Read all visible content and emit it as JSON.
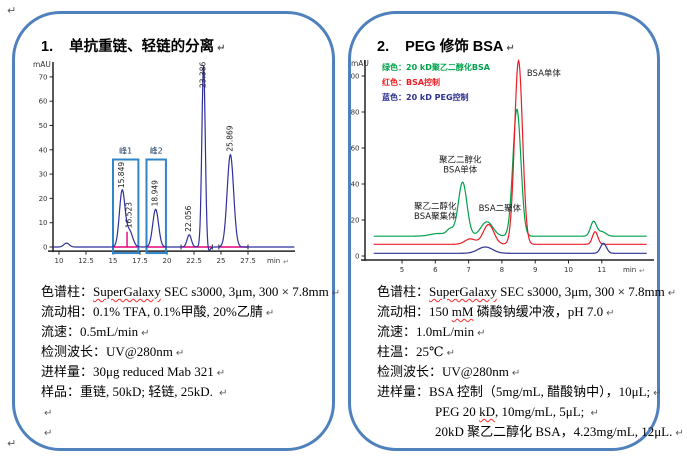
{
  "page": {
    "background": "#ffffff",
    "panel_border_color": "#4f81bd"
  },
  "paragraph_mark": "↵",
  "panels": [
    {
      "number": "1.",
      "title": "单抗重链、轻链的分离",
      "specs": [
        {
          "label": "色谱柱：",
          "segments": [
            {
              "text": "SuperGalaxy",
              "wavy": true
            },
            {
              "text": " SEC s3000, 3μm, 300 × 7.8mm"
            }
          ]
        },
        {
          "label": "流动相：",
          "segments": [
            {
              "text": "0.1% TFA, 0.1%甲酸, 20%乙腈"
            }
          ]
        },
        {
          "label": "流速：",
          "segments": [
            {
              "text": "0.5mL/min"
            }
          ]
        },
        {
          "label": "检测波长：",
          "segments": [
            {
              "text": "UV@280nm"
            }
          ]
        },
        {
          "label": "进样量：",
          "segments": [
            {
              "text": "30μg reduced Mab 321"
            }
          ]
        },
        {
          "label": "样品：",
          "segments": [
            {
              "text": "重链, 50kD; 轻链, 25kD. "
            }
          ]
        },
        {
          "label": "",
          "segments": []
        },
        {
          "label": "",
          "segments": []
        }
      ]
    },
    {
      "number": "2.",
      "title": "PEG 修饰 BSA",
      "specs": [
        {
          "label": "色谱柱：",
          "segments": [
            {
              "text": "SuperGalaxy",
              "wavy": true
            },
            {
              "text": " SEC s3000, 3μm, 300 × 7.8mm"
            }
          ]
        },
        {
          "label": "流动相：",
          "segments": [
            {
              "text": "150 "
            },
            {
              "text": "mM",
              "wavy": true
            },
            {
              "text": " 磷酸钠缓冲液，pH 7.0"
            }
          ]
        },
        {
          "label": "流速：",
          "segments": [
            {
              "text": "1.0mL/min"
            }
          ]
        },
        {
          "label": "柱温：",
          "segments": [
            {
              "text": "25℃"
            }
          ]
        },
        {
          "label": "检测波长：",
          "segments": [
            {
              "text": "UV@280nm"
            }
          ]
        },
        {
          "label": "进样量：",
          "segments": [
            {
              "text": "BSA 控制（5mg/mL, 醋酸钠中），10μL;"
            }
          ]
        },
        {
          "label": "",
          "indent": true,
          "segments": [
            {
              "text": "PEG 20 "
            },
            {
              "text": "kD",
              "wavy": true
            },
            {
              "text": ", 10mg/mL, 5μL; "
            }
          ]
        },
        {
          "label": "",
          "indent": true,
          "segments": [
            {
              "text": "20kD 聚乙二醇化 BSA，4.23mg/mL, 12μL."
            }
          ]
        }
      ]
    }
  ],
  "chart_data": [
    {
      "type": "line",
      "title": "单抗重链、轻链的分离 SEC chromatogram",
      "xlabel": "min",
      "ylabel": "mAU",
      "xlim": [
        9.5,
        31.8
      ],
      "ylim": [
        -4,
        77
      ],
      "xticks": [
        10,
        12.5,
        15,
        17.5,
        20,
        22.5,
        25,
        27.5
      ],
      "yticks": [
        0,
        10,
        20,
        30,
        40,
        50,
        60,
        70
      ],
      "grid": false,
      "series": [
        {
          "name": "UV 280nm trace",
          "color": "#2f2f9d",
          "baseline": 0,
          "peaks": [
            {
              "rt": 10.7,
              "height": 1.6,
              "sigma": 0.25
            },
            {
              "rt": 15.849,
              "height": 23,
              "sigma": 0.26,
              "label": "15.849"
            },
            {
              "rt": 16.523,
              "height": 6.5,
              "sigma": 0.3,
              "label": "16.523"
            },
            {
              "rt": 18.949,
              "height": 15.5,
              "sigma": 0.27,
              "label": "18.949"
            },
            {
              "rt": 22.056,
              "height": 5,
              "sigma": 0.2,
              "label": "22.056"
            },
            {
              "rt": 23.386,
              "height": 75,
              "sigma": 0.16,
              "label": "23.386"
            },
            {
              "rt": 23.78,
              "height": -2.2,
              "sigma": 0.18
            },
            {
              "rt": 25.869,
              "height": 38,
              "sigma": 0.3,
              "label": "25.869"
            }
          ]
        }
      ],
      "integration_color": "#e5007d",
      "integration_segments": [
        [
          15.0,
          17.35
        ],
        [
          18.1,
          19.9
        ],
        [
          21.3,
          24.2
        ],
        [
          24.8,
          27.5
        ]
      ],
      "drop_line": {
        "x": 16.3,
        "to": 6.3
      },
      "region_box_color": "#2e86c8",
      "region_label_color": "#17375e",
      "region_boxes": [
        {
          "label": "峰1",
          "x1": 15.0,
          "x2": 17.35,
          "y1": -2.5,
          "y2": 36
        },
        {
          "label": "峰2",
          "x1": 18.1,
          "x2": 19.9,
          "y1": -2.5,
          "y2": 36
        }
      ]
    },
    {
      "type": "line",
      "title": "PEG 修饰 BSA SEC chromatogram",
      "xlabel": "min",
      "ylabel": "mAU",
      "xlim": [
        4.15,
        12.35
      ],
      "ylim": [
        -3,
        112
      ],
      "xticks": [
        5,
        6,
        7,
        8,
        9,
        10,
        11
      ],
      "yticks": [
        0,
        20,
        40,
        60,
        80,
        100
      ],
      "grid": false,
      "legend_position": "top-left",
      "legend": [
        {
          "text": "绿色：20 kD聚乙二醇化BSA",
          "color": "#00a14b"
        },
        {
          "text": "红色：BSA控制",
          "color": "#ed1c24"
        },
        {
          "text": "蓝色：20 kD PEG控制",
          "color": "#2e3192"
        }
      ],
      "series": [
        {
          "name": "20 kD聚乙二醇化BSA",
          "color": "#00a14b",
          "baseline": 11,
          "peaks": [
            {
              "rt": 6.1,
              "height": 1.5,
              "sigma": 0.25
            },
            {
              "rt": 6.45,
              "height": 3.5,
              "sigma": 0.1
            },
            {
              "rt": 6.82,
              "height": 30,
              "sigma": 0.13
            },
            {
              "rt": 7.55,
              "height": 8,
              "sigma": 0.18
            },
            {
              "rt": 8.45,
              "height": 70.5,
              "sigma": 0.12
            },
            {
              "rt": 10.75,
              "height": 8,
              "sigma": 0.09
            },
            {
              "rt": 11.0,
              "height": 2.5,
              "sigma": 0.12
            }
          ]
        },
        {
          "name": "BSA控制",
          "color": "#ed1c24",
          "baseline": 6.5,
          "peaks": [
            {
              "rt": 7.05,
              "height": 3,
              "sigma": 0.16
            },
            {
              "rt": 7.6,
              "height": 11,
              "sigma": 0.16
            },
            {
              "rt": 8.5,
              "height": 102,
              "sigma": 0.12
            },
            {
              "rt": 10.8,
              "height": 7,
              "sigma": 0.08
            }
          ]
        },
        {
          "name": "20 kD PEG控制",
          "color": "#2e3192",
          "baseline": 1.5,
          "peaks": [
            {
              "rt": 7.5,
              "height": 3.5,
              "sigma": 0.22
            },
            {
              "rt": 11.05,
              "height": 5.5,
              "sigma": 0.09
            }
          ]
        }
      ],
      "annotations": [
        {
          "text": [
            "BSA单体"
          ],
          "x": 8.75,
          "y": 100,
          "anchor": "start"
        },
        {
          "text": [
            "聚乙二醇化",
            "BSA单体"
          ],
          "x": 6.75,
          "y": 52,
          "anchor": "middle"
        },
        {
          "text": [
            "聚乙二醇化",
            "BSA聚集体"
          ],
          "x": 6.0,
          "y": 26,
          "anchor": "middle"
        },
        {
          "text": [
            "BSA二聚体"
          ],
          "x": 7.3,
          "y": 25,
          "anchor": "start"
        }
      ]
    }
  ]
}
